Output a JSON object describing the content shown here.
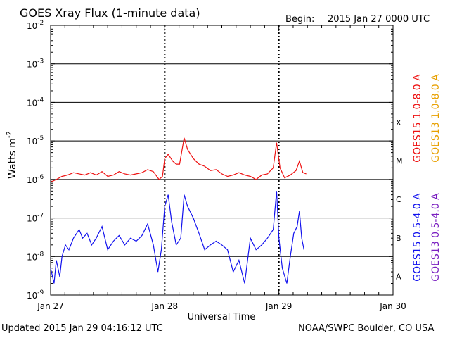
{
  "header": {
    "title": "GOES Xray Flux (1-minute data)",
    "begin_label": "Begin:",
    "begin_value": "2015 Jan 27 0000 UTC"
  },
  "footer": {
    "updated": "Updated 2015 Jan 29 04:16:12 UTC",
    "credit": "NOAA/SWPC Boulder, CO USA"
  },
  "chart_data": {
    "type": "line",
    "title": "GOES Xray Flux (1-minute data)",
    "xlabel": "Universal Time",
    "ylabel_base": "Watts m",
    "ylabel_exp": "-2",
    "yscale": "log",
    "ylim": [
      1e-09,
      0.01
    ],
    "xlim_days": [
      0,
      3
    ],
    "x_ticks": [
      {
        "day": 0,
        "label": "Jan 27"
      },
      {
        "day": 1,
        "label": "Jan 28"
      },
      {
        "day": 2,
        "label": "Jan 29"
      },
      {
        "day": 3,
        "label": "Jan 30"
      }
    ],
    "y_ticks": [
      {
        "exp": -2,
        "label_base": "10",
        "label_exp": "-2"
      },
      {
        "exp": -3,
        "label_base": "10",
        "label_exp": "-3"
      },
      {
        "exp": -4,
        "label_base": "10",
        "label_exp": "-4"
      },
      {
        "exp": -5,
        "label_base": "10",
        "label_exp": "-5"
      },
      {
        "exp": -6,
        "label_base": "10",
        "label_exp": "-6"
      },
      {
        "exp": -7,
        "label_base": "10",
        "label_exp": "-7"
      },
      {
        "exp": -8,
        "label_base": "10",
        "label_exp": "-8"
      },
      {
        "exp": -9,
        "label_base": "10",
        "label_exp": "-9"
      }
    ],
    "flare_classes": [
      {
        "label": "X",
        "exp": -4
      },
      {
        "label": "M",
        "exp": -5
      },
      {
        "label": "C",
        "exp": -6
      },
      {
        "label": "B",
        "exp": -7
      },
      {
        "label": "A",
        "exp": -8
      }
    ],
    "grid_horizontal": true,
    "legend": [
      {
        "name": "GOES15 1.0-8.0 A",
        "color": "#ee1111"
      },
      {
        "name": "GOES13 1.0-8.0 A",
        "color": "#e8a000"
      },
      {
        "name": "GOES15 0.5-4.0 A",
        "color": "#1111ee"
      },
      {
        "name": "GOES13 0.5-4.0 A",
        "color": "#7a1fc0"
      }
    ],
    "series": [
      {
        "name": "GOES15 1.0-8.0 A",
        "color": "#ee1111",
        "points": [
          [
            0.0,
            8.5e-07
          ],
          [
            0.05,
            1e-06
          ],
          [
            0.1,
            1.2e-06
          ],
          [
            0.15,
            1.3e-06
          ],
          [
            0.2,
            1.5e-06
          ],
          [
            0.25,
            1.4e-06
          ],
          [
            0.3,
            1.3e-06
          ],
          [
            0.35,
            1.5e-06
          ],
          [
            0.4,
            1.3e-06
          ],
          [
            0.45,
            1.6e-06
          ],
          [
            0.5,
            1.2e-06
          ],
          [
            0.55,
            1.3e-06
          ],
          [
            0.6,
            1.6e-06
          ],
          [
            0.65,
            1.4e-06
          ],
          [
            0.7,
            1.3e-06
          ],
          [
            0.75,
            1.4e-06
          ],
          [
            0.8,
            1.5e-06
          ],
          [
            0.85,
            1.8e-06
          ],
          [
            0.9,
            1.6e-06
          ],
          [
            0.95,
            1e-06
          ],
          [
            0.98,
            1.2e-06
          ],
          [
            1.0,
            3.5e-06
          ],
          [
            1.03,
            4.5e-06
          ],
          [
            1.07,
            3e-06
          ],
          [
            1.1,
            2.5e-06
          ],
          [
            1.13,
            2.5e-06
          ],
          [
            1.17,
            1.2e-05
          ],
          [
            1.2,
            6e-06
          ],
          [
            1.25,
            3.5e-06
          ],
          [
            1.3,
            2.5e-06
          ],
          [
            1.35,
            2.2e-06
          ],
          [
            1.4,
            1.7e-06
          ],
          [
            1.45,
            1.8e-06
          ],
          [
            1.5,
            1.4e-06
          ],
          [
            1.55,
            1.2e-06
          ],
          [
            1.6,
            1.3e-06
          ],
          [
            1.65,
            1.5e-06
          ],
          [
            1.7,
            1.3e-06
          ],
          [
            1.75,
            1.2e-06
          ],
          [
            1.8,
            1e-06
          ],
          [
            1.85,
            1.3e-06
          ],
          [
            1.9,
            1.4e-06
          ],
          [
            1.95,
            2e-06
          ],
          [
            1.98,
            9e-06
          ],
          [
            2.01,
            2e-06
          ],
          [
            2.05,
            1.1e-06
          ],
          [
            2.1,
            1.3e-06
          ],
          [
            2.15,
            1.7e-06
          ],
          [
            2.18,
            3e-06
          ],
          [
            2.21,
            1.5e-06
          ],
          [
            2.24,
            1.4e-06
          ]
        ]
      },
      {
        "name": "GOES15 0.5-4.0 A",
        "color": "#1111ee",
        "points": [
          [
            0.0,
            5e-09
          ],
          [
            0.03,
            2e-09
          ],
          [
            0.05,
            8e-09
          ],
          [
            0.08,
            3e-09
          ],
          [
            0.1,
            1e-08
          ],
          [
            0.13,
            2e-08
          ],
          [
            0.16,
            1.5e-08
          ],
          [
            0.2,
            3e-08
          ],
          [
            0.25,
            5e-08
          ],
          [
            0.28,
            3e-08
          ],
          [
            0.32,
            4e-08
          ],
          [
            0.36,
            2e-08
          ],
          [
            0.4,
            3e-08
          ],
          [
            0.45,
            6e-08
          ],
          [
            0.5,
            1.5e-08
          ],
          [
            0.55,
            2.5e-08
          ],
          [
            0.6,
            3.5e-08
          ],
          [
            0.65,
            2e-08
          ],
          [
            0.7,
            3e-08
          ],
          [
            0.75,
            2.5e-08
          ],
          [
            0.8,
            3.5e-08
          ],
          [
            0.85,
            7e-08
          ],
          [
            0.9,
            2e-08
          ],
          [
            0.94,
            4e-09
          ],
          [
            0.97,
            1.5e-08
          ],
          [
            1.0,
            2e-07
          ],
          [
            1.03,
            4e-07
          ],
          [
            1.06,
            8e-08
          ],
          [
            1.1,
            2e-08
          ],
          [
            1.14,
            3e-08
          ],
          [
            1.17,
            4e-07
          ],
          [
            1.2,
            2e-07
          ],
          [
            1.25,
            1e-07
          ],
          [
            1.3,
            4e-08
          ],
          [
            1.35,
            1.5e-08
          ],
          [
            1.4,
            2e-08
          ],
          [
            1.45,
            2.5e-08
          ],
          [
            1.5,
            2e-08
          ],
          [
            1.55,
            1.5e-08
          ],
          [
            1.6,
            4e-09
          ],
          [
            1.65,
            8e-09
          ],
          [
            1.7,
            2e-09
          ],
          [
            1.75,
            3e-08
          ],
          [
            1.8,
            1.5e-08
          ],
          [
            1.85,
            2e-08
          ],
          [
            1.9,
            3e-08
          ],
          [
            1.95,
            5e-08
          ],
          [
            1.98,
            5e-07
          ],
          [
            2.0,
            3e-08
          ],
          [
            2.03,
            5e-09
          ],
          [
            2.07,
            2e-09
          ],
          [
            2.1,
            1e-08
          ],
          [
            2.13,
            4e-08
          ],
          [
            2.16,
            6e-08
          ],
          [
            2.18,
            1.5e-07
          ],
          [
            2.2,
            3e-08
          ],
          [
            2.22,
            1.5e-08
          ]
        ]
      }
    ]
  }
}
